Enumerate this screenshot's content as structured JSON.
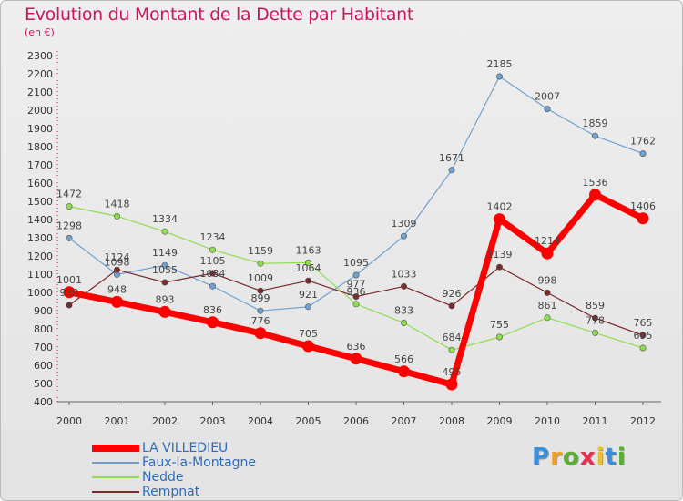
{
  "chart_data": {
    "type": "line",
    "title": "Evolution du Montant de la Dette par Habitant",
    "subtitle": "(en €)",
    "x": [
      "2000",
      "2001",
      "2002",
      "2003",
      "2004",
      "2005",
      "2006",
      "2007",
      "2008",
      "2009",
      "2010",
      "2011",
      "2012"
    ],
    "y_ticks": [
      400,
      500,
      600,
      700,
      800,
      900,
      1000,
      1100,
      1200,
      1300,
      1400,
      1500,
      1600,
      1700,
      1800,
      1900,
      2000,
      2100,
      2200,
      2300
    ],
    "ylim": [
      400,
      2300
    ],
    "grid": false,
    "legend_position": "bottom-left",
    "series": [
      {
        "name": "LA VILLEDIEU",
        "color": "#ff0000",
        "values": [
          1001,
          948,
          893,
          836,
          776,
          705,
          636,
          566,
          495,
          1402,
          1214,
          1536,
          1406
        ]
      },
      {
        "name": "Faux-la-Montagne",
        "color": "#6fa0d0",
        "values": [
          1298,
          1098,
          1149,
          1034,
          899,
          921,
          1095,
          1309,
          1671,
          2185,
          2007,
          1859,
          1762
        ]
      },
      {
        "name": "Nedde",
        "color": "#8fdc50",
        "values": [
          1472,
          1418,
          1334,
          1234,
          1159,
          1163,
          936,
          833,
          684,
          755,
          861,
          778,
          695
        ]
      },
      {
        "name": "Rempnat",
        "color": "#7a2a2a",
        "values": [
          930,
          1124,
          1055,
          1105,
          1009,
          1064,
          977,
          1033,
          926,
          1139,
          998,
          859,
          765
        ]
      }
    ]
  },
  "logo": {
    "letters": [
      "P",
      "r",
      "o",
      "x",
      "i",
      "t",
      "i"
    ],
    "colors": [
      "#3b8fd8",
      "#f0a020",
      "#58b030",
      "#e83050",
      "#f0c020",
      "#3b8fd8",
      "#58b030"
    ]
  }
}
